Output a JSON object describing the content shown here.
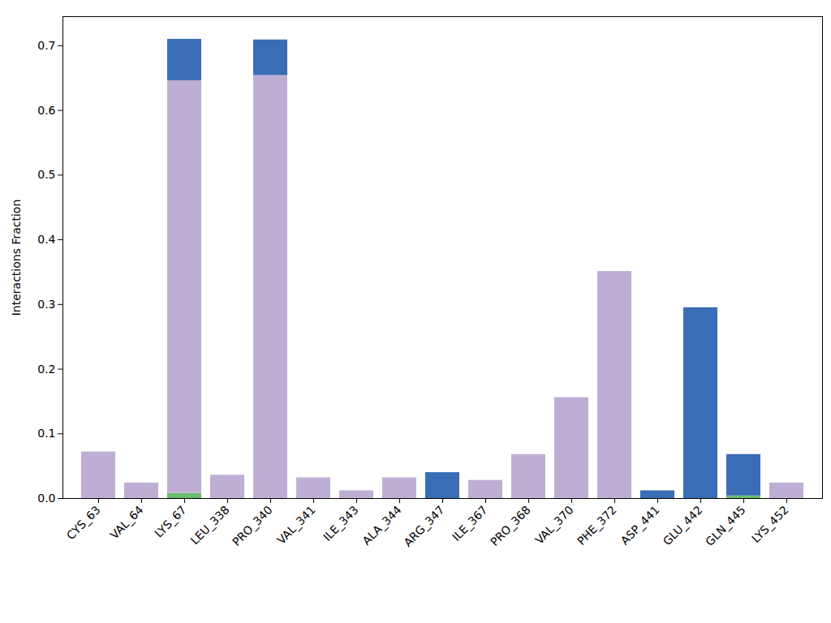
{
  "chart_data": {
    "type": "bar",
    "y_label": "Interactions Fraction",
    "categories": [
      "CYS_63",
      "VAL_64",
      "LYS_67",
      "LEU_338",
      "PRO_340",
      "VAL_341",
      "ILE_343",
      "ALA_344",
      "ARG_347",
      "ILE_367",
      "PRO_368",
      "VAL_370",
      "PHE_372",
      "ASP_441",
      "GLU_442",
      "GLN_445",
      "LYS_452"
    ],
    "series": [
      {
        "color": "#6cbd6c",
        "values": [
          0,
          0,
          0.008,
          0,
          0,
          0,
          0,
          0,
          0,
          0,
          0,
          0,
          0,
          0,
          0,
          0.004,
          0
        ]
      },
      {
        "color": "#bfaed4",
        "values": [
          0.072,
          0.024,
          0.638,
          0.036,
          0.654,
          0.032,
          0.012,
          0.032,
          0,
          0.028,
          0.068,
          0.156,
          0.351,
          0,
          0,
          0,
          0.024
        ]
      },
      {
        "color": "#3a6db5",
        "values": [
          0,
          0,
          0.064,
          0,
          0.055,
          0,
          0,
          0,
          0.04,
          0,
          0,
          0,
          0,
          0.012,
          0.295,
          0.064,
          0
        ]
      }
    ],
    "stacked": true,
    "ylim": [
      0,
      0.745
    ],
    "yticks": [
      {
        "value": 0,
        "label": "0.0"
      },
      0.1,
      0.2,
      0.3,
      0.4,
      0.5,
      0.6,
      0.7
    ],
    "grid": false
  }
}
